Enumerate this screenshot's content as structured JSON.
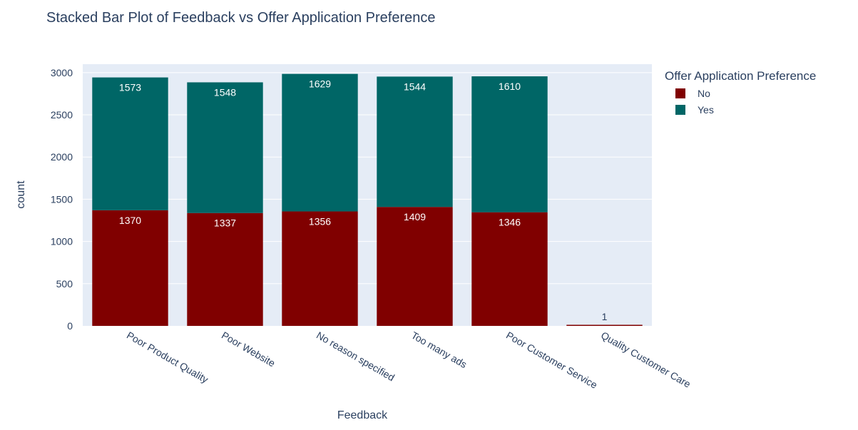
{
  "chart_data": {
    "type": "bar",
    "barmode": "stack",
    "title": "Stacked Bar Plot of Feedback vs Offer Application Preference",
    "xlabel": "Feedback",
    "ylabel": "count",
    "ylim": [
      0,
      3100
    ],
    "yticks": [
      0,
      500,
      1000,
      1500,
      2000,
      2500,
      3000
    ],
    "yticklabels": [
      "0",
      "500",
      "1000",
      "1500",
      "2000",
      "2500",
      "3000"
    ],
    "categories": [
      "Poor Product Quality",
      "Poor Website",
      "No reason specified",
      "Too many ads",
      "Poor Customer Service",
      "Quality Customer Care"
    ],
    "legend": {
      "title": "Offer Application Preference",
      "position": "right"
    },
    "grid": true,
    "series": [
      {
        "name": "No",
        "color": "#800000",
        "values": [
          1370,
          1337,
          1356,
          1409,
          1346,
          1
        ],
        "labels": [
          "1370",
          "1337",
          "1356",
          "1409",
          "1346",
          "1"
        ]
      },
      {
        "name": "Yes",
        "color": "#006666",
        "values": [
          1573,
          1548,
          1629,
          1544,
          1610,
          0
        ],
        "labels": [
          "1573",
          "1548",
          "1629",
          "1544",
          "1610",
          ""
        ]
      }
    ]
  }
}
